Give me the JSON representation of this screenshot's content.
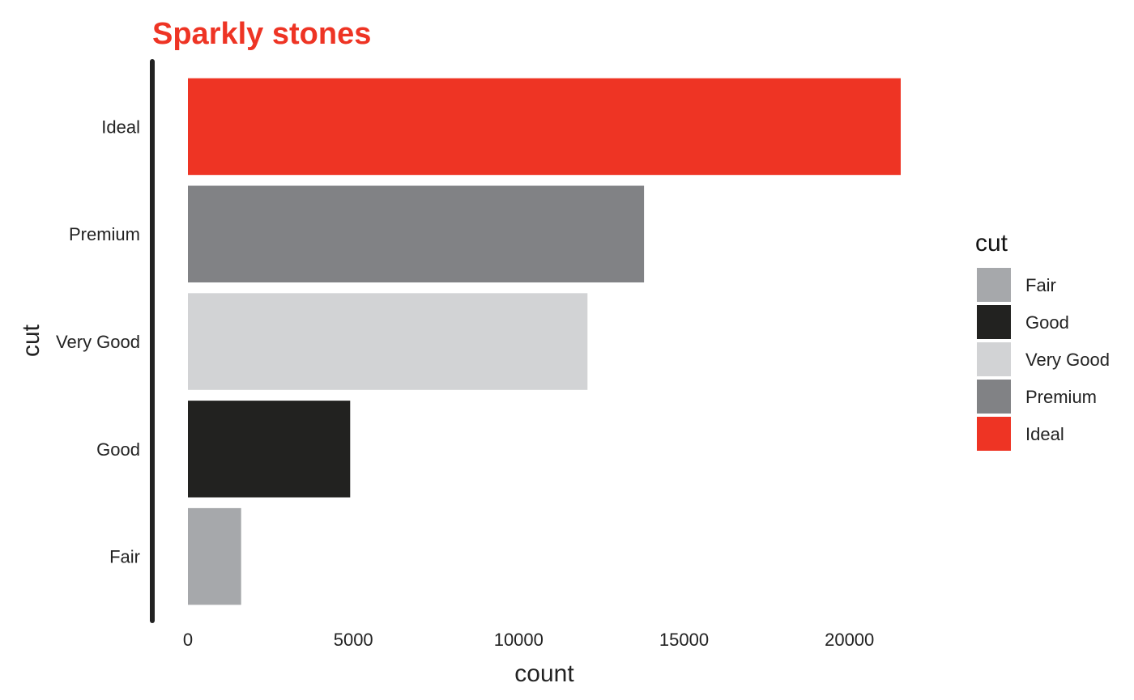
{
  "chart_data": {
    "type": "bar",
    "orientation": "horizontal",
    "title": "Sparkly stones",
    "title_color": "#ee3424",
    "xlabel": "count",
    "ylabel": "cut",
    "categories": [
      "Fair",
      "Good",
      "Very Good",
      "Premium",
      "Ideal"
    ],
    "values": [
      1610,
      4906,
      12082,
      13791,
      21551
    ],
    "colors": [
      "#a6a8ab",
      "#222220",
      "#d2d3d5",
      "#818285",
      "#ee3424"
    ],
    "xlim": [
      0,
      21551
    ],
    "x_ticks": [
      0,
      5000,
      10000,
      15000,
      20000
    ],
    "x_tick_labels": [
      "0",
      "5000",
      "10000",
      "15000",
      "20000"
    ],
    "grid": false,
    "legend": {
      "title": "cut",
      "position": "right",
      "entries": [
        "Fair",
        "Good",
        "Very Good",
        "Premium",
        "Ideal"
      ]
    },
    "axis_line_color": "#222222"
  }
}
